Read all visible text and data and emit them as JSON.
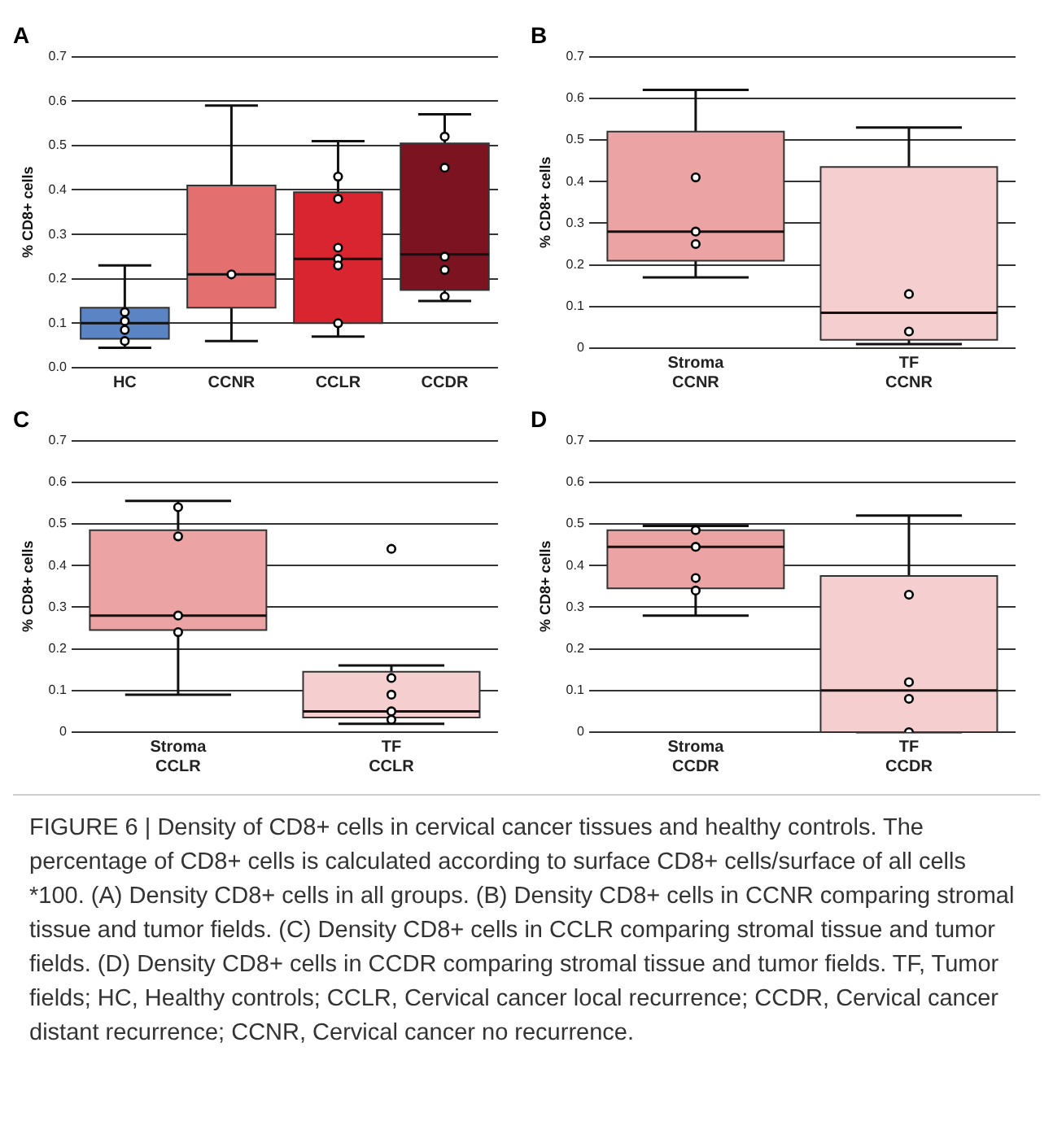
{
  "chart_data": [
    {
      "type": "box",
      "title": "A",
      "ylabel": "% CD8+ cells",
      "categories": [
        "HC",
        "CCNR",
        "CCLR",
        "CCDR"
      ],
      "colors": [
        "#5b84c4",
        "#e46f6f",
        "#d9252f",
        "#7b1420"
      ],
      "ylim": [
        0,
        0.7
      ],
      "yticks": [
        {
          "value": 0,
          "label": "0.0"
        },
        0.1,
        0.2,
        0.3,
        0.4,
        0.5,
        0.6,
        0.7
      ],
      "grid": "y",
      "legend": false,
      "boxes": [
        {
          "low": 0.045,
          "q1": 0.065,
          "median": 0.1,
          "q3": 0.135,
          "high": 0.23
        },
        {
          "low": 0.06,
          "q1": 0.135,
          "median": 0.21,
          "q3": 0.41,
          "high": 0.59
        },
        {
          "low": 0.07,
          "q1": 0.1,
          "median": 0.245,
          "q3": 0.395,
          "high": 0.51
        },
        {
          "low": 0.15,
          "q1": 0.175,
          "median": 0.255,
          "q3": 0.505,
          "high": 0.57
        }
      ],
      "series": [
        {
          "type": "scatter",
          "marker": "circle",
          "color": "#000000",
          "x": [
            "HC",
            "HC",
            "HC",
            "HC",
            "CCNR",
            "CCLR",
            "CCLR",
            "CCLR",
            "CCLR",
            "CCLR",
            "CCLR",
            "CCDR",
            "CCDR",
            "CCDR",
            "CCDR",
            "CCDR"
          ],
          "values": [
            0.125,
            0.105,
            0.085,
            0.06,
            0.21,
            0.43,
            0.38,
            0.27,
            0.245,
            0.23,
            0.1,
            0.52,
            0.45,
            0.25,
            0.22,
            0.16
          ]
        }
      ]
    },
    {
      "type": "box",
      "title": "B",
      "ylabel": "% CD8+ cells",
      "categories": [
        "Stroma CCNR",
        "TF CCNR"
      ],
      "colors": [
        "#eba3a3",
        "#f5cfcf"
      ],
      "ylim": [
        0,
        0.7
      ],
      "yticks": [
        0,
        0.1,
        0.2,
        0.3,
        0.4,
        0.5,
        0.6,
        0.7
      ],
      "grid": "y",
      "legend": false,
      "boxes": [
        {
          "low": 0.17,
          "q1": 0.21,
          "median": 0.28,
          "q3": 0.52,
          "high": 0.62
        },
        {
          "low": 0.01,
          "q1": 0.02,
          "median": 0.085,
          "q3": 0.435,
          "high": 0.53
        }
      ],
      "series": [
        {
          "type": "scatter",
          "marker": "circle",
          "color": "#000000",
          "x": [
            "Stroma CCNR",
            "Stroma CCNR",
            "Stroma CCNR",
            "TF CCNR",
            "TF CCNR"
          ],
          "values": [
            0.41,
            0.28,
            0.25,
            0.13,
            0.04
          ]
        }
      ]
    },
    {
      "type": "box",
      "title": "C",
      "ylabel": "% CD8+ cells",
      "categories": [
        "Stroma CCLR",
        "TF CCLR"
      ],
      "colors": [
        "#eba3a3",
        "#f5cfcf"
      ],
      "ylim": [
        0,
        0.7
      ],
      "yticks": [
        0,
        0.1,
        0.2,
        0.3,
        0.4,
        0.5,
        0.6,
        0.7
      ],
      "grid": "y",
      "legend": false,
      "boxes": [
        {
          "low": 0.09,
          "q1": 0.245,
          "median": 0.28,
          "q3": 0.485,
          "high": 0.555
        },
        {
          "low": 0.02,
          "q1": 0.035,
          "median": 0.05,
          "q3": 0.145,
          "high": 0.16
        }
      ],
      "series": [
        {
          "type": "scatter",
          "marker": "circle",
          "color": "#000000",
          "x": [
            "Stroma CCLR",
            "Stroma CCLR",
            "Stroma CCLR",
            "Stroma CCLR",
            "TF CCLR",
            "TF CCLR",
            "TF CCLR",
            "TF CCLR",
            "TF CCLR"
          ],
          "values": [
            0.54,
            0.47,
            0.28,
            0.24,
            0.44,
            0.13,
            0.09,
            0.05,
            0.03
          ]
        }
      ]
    },
    {
      "type": "box",
      "title": "D",
      "ylabel": "% CD8+ cells",
      "categories": [
        "Stroma CCDR",
        "TF CCDR"
      ],
      "colors": [
        "#eba3a3",
        "#f5cfcf"
      ],
      "ylim": [
        0,
        0.7
      ],
      "yticks": [
        0,
        0.1,
        0.2,
        0.3,
        0.4,
        0.5,
        0.6,
        0.7
      ],
      "grid": "y",
      "legend": false,
      "boxes": [
        {
          "low": 0.28,
          "q1": 0.345,
          "median": 0.445,
          "q3": 0.485,
          "high": 0.495
        },
        {
          "low": 0,
          "q1": 0,
          "median": 0.1,
          "q3": 0.375,
          "high": 0.52
        }
      ],
      "series": [
        {
          "type": "scatter",
          "marker": "circle",
          "color": "#000000",
          "x": [
            "Stroma CCDR",
            "Stroma CCDR",
            "Stroma CCDR",
            "Stroma CCDR",
            "TF CCDR",
            "TF CCDR",
            "TF CCDR",
            "TF CCDR"
          ],
          "values": [
            0.485,
            0.445,
            0.37,
            0.34,
            0.33,
            0.12,
            0.08,
            0
          ]
        }
      ]
    },
    {
      "type": "other",
      "annotations": [
        "FIGURE 6 | Density of CD8+ cells in cervical cancer tissues and healthy controls. The percentage of CD8+ cells is calculated according to surface CD8+ cells/surface of all cells *100. (A) Density CD8+ cells in all groups. (B) Density CD8+ cells in CCNR comparing stromal tissue and tumor fields. (C) Density CD8+ cells in CCLR comparing stromal tissue and tumor fields. (D) Density CD8+ cells in CCDR comparing stromal tissue and tumor fields. TF, Tumor fields; HC, Healthy controls; CCLR, Cervical cancer local recurrence; CCDR, Cervical cancer distant recurrence; CCNR, Cervical cancer no recurrence."
      ]
    }
  ]
}
